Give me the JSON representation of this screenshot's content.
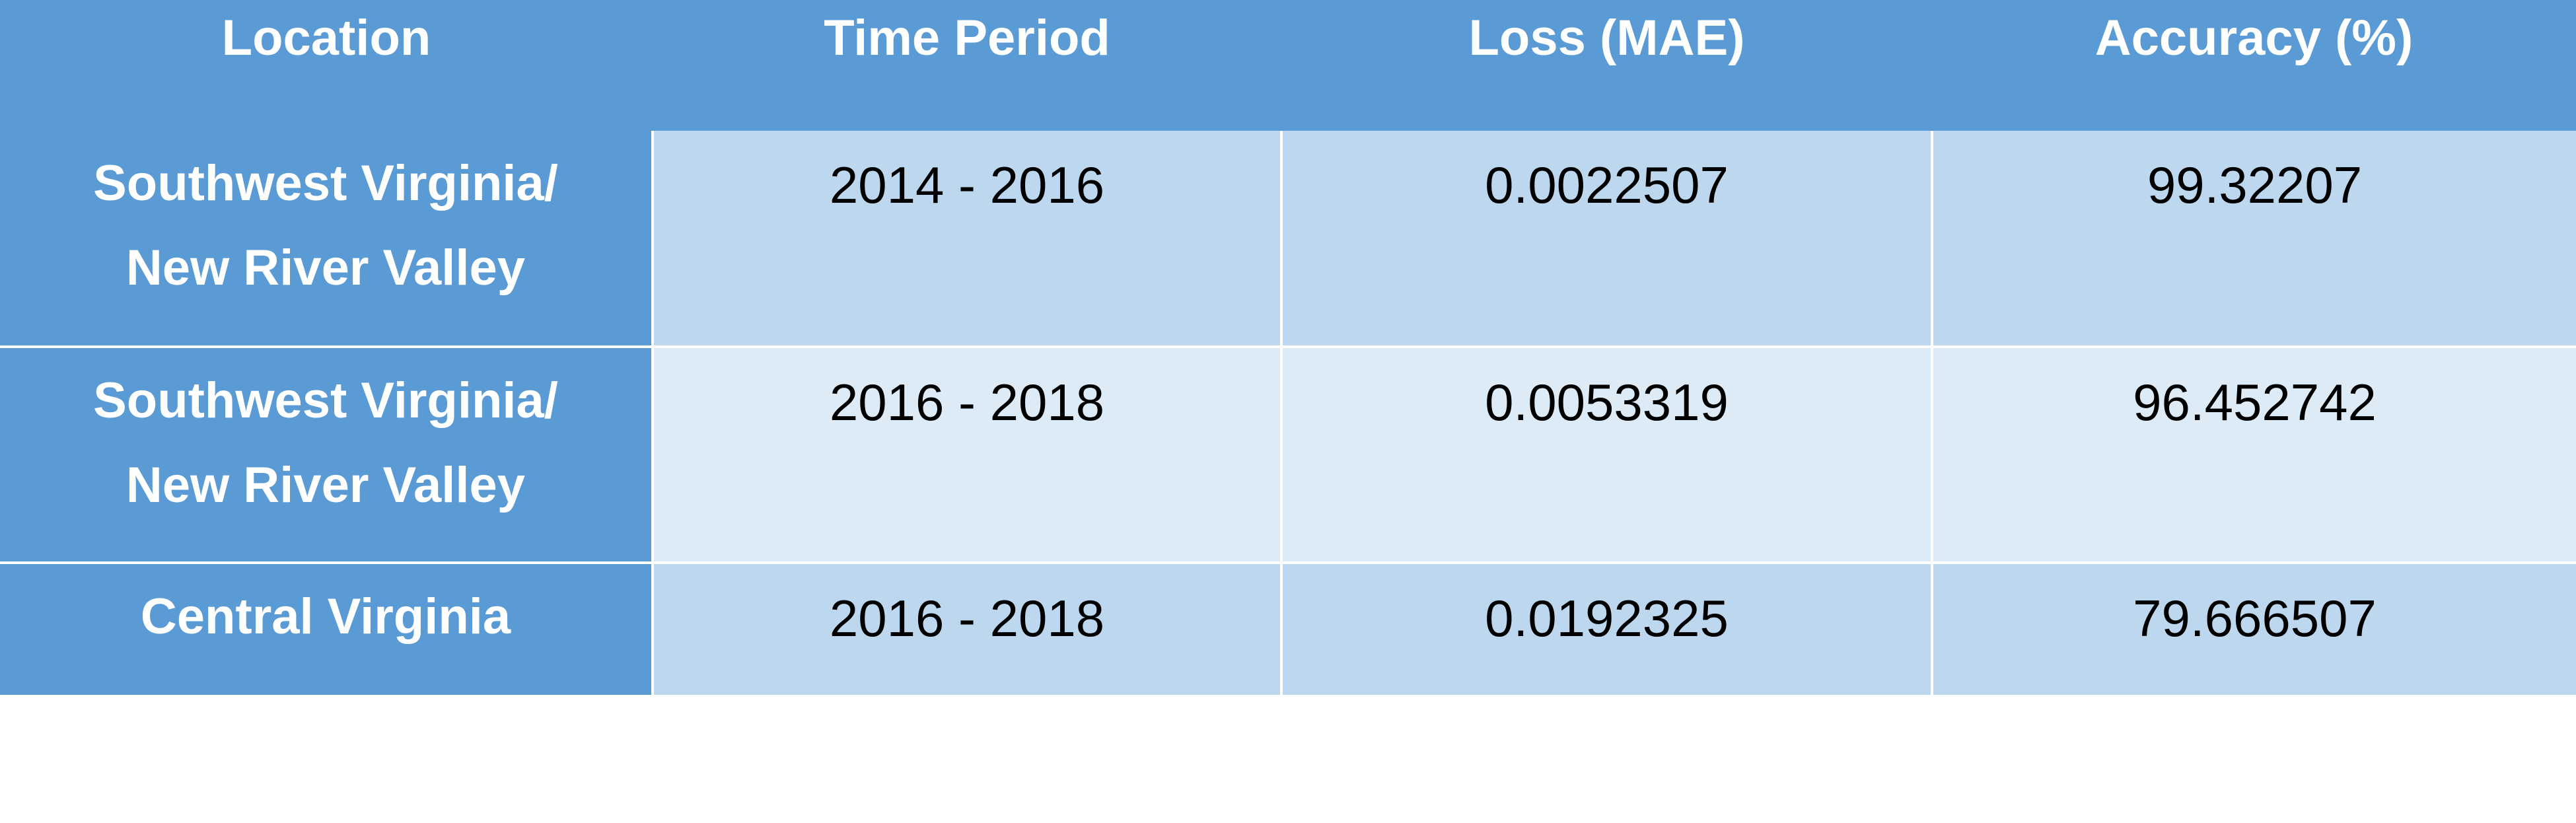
{
  "table": {
    "headers": [
      "Location",
      "Time Period",
      "Loss (MAE)",
      "Accuracy (%)"
    ],
    "rows": [
      {
        "location_line1": "Southwest Virginia/",
        "location_line2": "New River Valley",
        "time_period": "2014 - 2016",
        "loss": "0.0022507",
        "accuracy": "99.32207"
      },
      {
        "location_line1": "Southwest Virginia/",
        "location_line2": "New River Valley",
        "time_period": "2016 - 2018",
        "loss": "0.0053319",
        "accuracy": "96.452742"
      },
      {
        "location_line1": "Central Virginia",
        "location_line2": "",
        "time_period": "2016 - 2018",
        "loss": "0.0192325",
        "accuracy": "79.666507"
      }
    ]
  },
  "colors": {
    "header_blue": "#5b9bd5",
    "row_medium": "#bdd7ee",
    "row_light": "#ddebf7"
  }
}
